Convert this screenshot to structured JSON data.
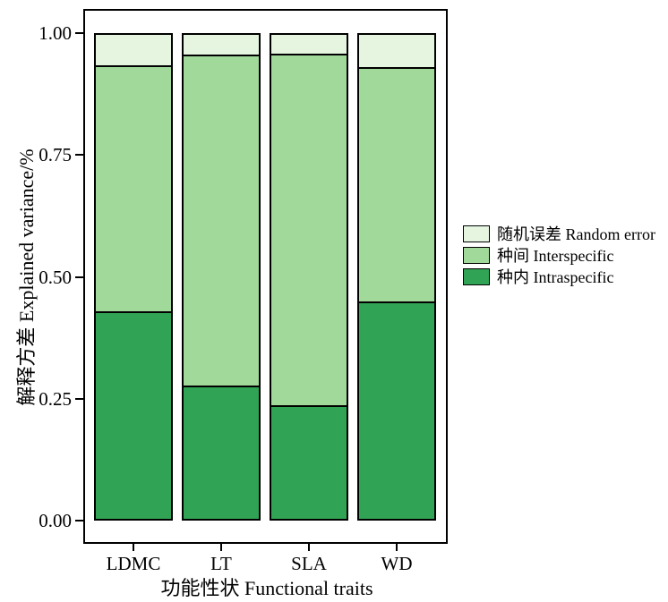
{
  "chart_data": {
    "type": "bar",
    "stacked": true,
    "title": "",
    "categories": [
      "LDMC",
      "LT",
      "SLA",
      "WD"
    ],
    "series": [
      {
        "name": "种内 Intraspecific",
        "color": "#31a354",
        "values": [
          0.425,
          0.273,
          0.233,
          0.446
        ]
      },
      {
        "name": "种间 Interspecific",
        "color": "#a1d99b",
        "values": [
          0.505,
          0.68,
          0.721,
          0.481
        ]
      },
      {
        "name": "随机误差 Random error",
        "color": "#e5f5e0",
        "values": [
          0.07,
          0.047,
          0.046,
          0.073
        ]
      }
    ],
    "xlabel": "功能性状  Functional traits",
    "ylabel": "解释方差 Explained variance/%",
    "ylim": [
      0,
      1
    ],
    "yticks": [
      "0.00",
      "0.25",
      "0.50",
      "0.75",
      "1.00"
    ],
    "grid": "off",
    "legend_position": "right",
    "legend_order_top_to_bottom": [
      "随机误差 Random error",
      "种间 Interspecific",
      "种内 Intraspecific"
    ],
    "bar_border_color": "#000000",
    "panel_border_color": "#000000"
  }
}
